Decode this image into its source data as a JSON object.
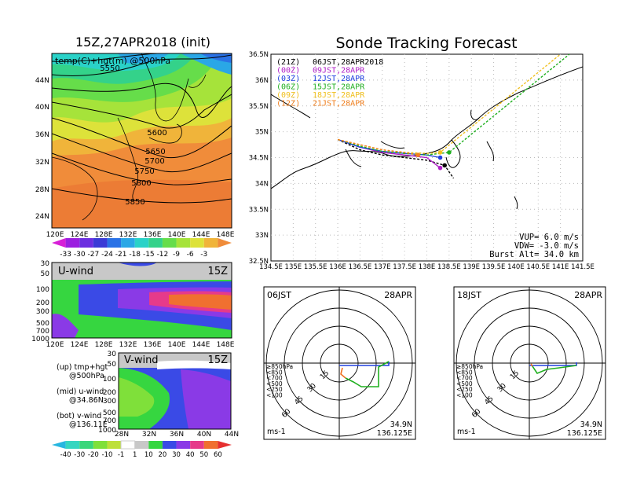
{
  "left": {
    "title": "15Z,27APR2018 (init)",
    "map_label": "temp(C)+hgt(m) @500hPa",
    "lat_labels": [
      "44N",
      "40N",
      "36N",
      "32N",
      "28N",
      "24N"
    ],
    "lon_labels": [
      "120E",
      "124E",
      "128E",
      "132E",
      "136E",
      "140E",
      "144E",
      "148E"
    ],
    "contour_labels": [
      "5550",
      "5600",
      "5650",
      "5700",
      "5750",
      "5800",
      "5850"
    ],
    "temp_scale": [
      "-33",
      "-30",
      "-27",
      "-24",
      "-21",
      "-18",
      "-15",
      "-12",
      "-9",
      "-6",
      "-3"
    ],
    "temp_colors": [
      "#d71fd7",
      "#9b1fe0",
      "#6b2ee0",
      "#3a3ad6",
      "#2a72e6",
      "#2aa7e6",
      "#2ad2c8",
      "#34d28a",
      "#66dd4a",
      "#a6e33a",
      "#dde23a",
      "#f0b43a",
      "#f08c3a"
    ],
    "u_panel": {
      "label": "U-wind",
      "time": "15Z",
      "levels": [
        "30",
        "50",
        "100",
        "200",
        "300",
        "500",
        "700",
        "1000"
      ],
      "lons": [
        "120E",
        "124E",
        "128E",
        "132E",
        "136E",
        "140E",
        "144E",
        "148E"
      ]
    },
    "v_panel": {
      "label": "V-wind",
      "time": "15Z",
      "levels": [
        "30",
        "50",
        "100",
        "200",
        "300",
        "500",
        "700",
        "1000"
      ],
      "lats": [
        "28N",
        "32N",
        "36N",
        "40N",
        "44N"
      ]
    },
    "notes": [
      {
        "line1": "(up) tmp+hgt",
        "line2": "@500hPa"
      },
      {
        "line1": "(mid) u-wind",
        "line2": "@34.86N"
      },
      {
        "line1": "(bot) v-wind",
        "line2": "@136.11E"
      }
    ],
    "wind_scale": [
      "-40",
      "-30",
      "-20",
      "-10",
      "-1",
      "1",
      "10",
      "20",
      "30",
      "40",
      "50",
      "60"
    ],
    "wind_colors": [
      "#27b6e0",
      "#36d6c0",
      "#3ad67a",
      "#7fe03a",
      "#bde03a",
      "#ffffff",
      "#c8c8c8",
      "#36d640",
      "#3a4ae6",
      "#8a3ae6",
      "#e63a8a",
      "#f07030",
      "#e63030"
    ]
  },
  "track": {
    "title": "Sonde Tracking Forecast",
    "lat_labels": [
      "36.5N",
      "36N",
      "35.5N",
      "35N",
      "34.5N",
      "34N",
      "33.5N",
      "33N",
      "32.5N"
    ],
    "lon_labels": [
      "134.5E",
      "135E",
      "135.5E",
      "136E",
      "136.5E",
      "137E",
      "137.5E",
      "138E",
      "138.5E",
      "139E",
      "139.5E",
      "140E",
      "140.5E",
      "141E",
      "141.5E"
    ],
    "legend": [
      {
        "code": "(21Z)",
        "time": "06JST,28APR2018",
        "color": "#000000"
      },
      {
        "code": "(00Z)",
        "time": "09JST,28APR",
        "color": "#b020c8"
      },
      {
        "code": "(03Z)",
        "time": "12JST,28APR",
        "color": "#2040e0"
      },
      {
        "code": "(06Z)",
        "time": "15JST,28APR",
        "color": "#20b020"
      },
      {
        "code": "(09Z)",
        "time": "18JST,28APR",
        "color": "#f0c020"
      },
      {
        "code": "(12Z)",
        "time": "21JST,28APR",
        "color": "#f08020"
      }
    ],
    "vup": "VUP= 6.0 m/s",
    "vdw": "VDW= -3.0 m/s",
    "burst": "Burst Alt= 34.0 km"
  },
  "hodo1": {
    "time": "06JST",
    "date": "28APR",
    "lat": "34.9N",
    "lon": "136.125E",
    "unit": "ms-1",
    "rings": [
      "15",
      "30",
      "45",
      "60"
    ],
    "legend": [
      "≥850hPa",
      "<850",
      "<700",
      "<500",
      "<250",
      "<100"
    ]
  },
  "hodo2": {
    "time": "18JST",
    "date": "28APR",
    "lat": "34.9N",
    "lon": "136.125E",
    "unit": "ms-1",
    "rings": [
      "15",
      "30",
      "45",
      "60"
    ],
    "legend": [
      "≥850hPa",
      "<850",
      "<700",
      "<500",
      "<250",
      "<100"
    ]
  },
  "chart_data": [
    {
      "type": "heatmap",
      "title": "15Z,27APR2018 (init)",
      "annotation": "temp(C)+hgt(m) @500hPa",
      "xlabel": "",
      "ylabel": "",
      "x_ticks": [
        "120E",
        "124E",
        "128E",
        "132E",
        "136E",
        "140E",
        "144E",
        "148E"
      ],
      "y_ticks": [
        "24N",
        "28N",
        "32N",
        "36N",
        "40N",
        "44N"
      ],
      "contours": [
        5550,
        5600,
        5650,
        5700,
        5750,
        5800,
        5850
      ],
      "colorbar": [
        -33,
        -30,
        -27,
        -24,
        -21,
        -18,
        -15,
        -12,
        -9,
        -6,
        -3
      ]
    },
    {
      "type": "heatmap",
      "title": "U-wind",
      "annotation": "15Z",
      "y_ticks": [
        "30",
        "50",
        "100",
        "200",
        "300",
        "500",
        "700",
        "1000"
      ],
      "x_ticks": [
        "120E",
        "124E",
        "128E",
        "132E",
        "136E",
        "140E",
        "144E",
        "148E"
      ]
    },
    {
      "type": "heatmap",
      "title": "V-wind",
      "annotation": "15Z",
      "y_ticks": [
        "30",
        "50",
        "100",
        "200",
        "300",
        "500",
        "700",
        "1000"
      ],
      "x_ticks": [
        "28N",
        "32N",
        "36N",
        "40N",
        "44N"
      ],
      "colorbar": [
        -40,
        -30,
        -20,
        -10,
        -1,
        1,
        10,
        20,
        30,
        40,
        50,
        60
      ]
    },
    {
      "type": "line",
      "title": "Sonde Tracking Forecast",
      "xlim": [
        134.5,
        141.5
      ],
      "ylim": [
        32.5,
        36.5
      ],
      "series": [
        {
          "name": "(21Z) 06JST,28APR2018",
          "x": [
            136.0,
            136.5,
            137.0,
            137.5,
            138.0,
            138.4,
            138.6
          ],
          "y": [
            34.85,
            34.65,
            34.55,
            34.5,
            34.45,
            34.35,
            34.1
          ]
        },
        {
          "name": "(00Z) 09JST,28APR",
          "x": [
            136.0,
            136.5,
            137.0,
            137.5,
            138.0,
            138.3
          ],
          "y": [
            34.85,
            34.7,
            34.6,
            34.55,
            34.5,
            34.3
          ]
        },
        {
          "name": "(03Z) 12JST,28APR",
          "x": [
            136.0,
            136.5,
            137.0,
            137.5,
            138.0,
            138.3
          ],
          "y": [
            34.85,
            34.7,
            34.62,
            34.58,
            34.55,
            34.5
          ]
        },
        {
          "name": "(06Z) 15JST,28APR",
          "x": [
            136.0,
            136.5,
            137.0,
            137.5,
            138.0,
            138.5,
            141.2
          ],
          "y": [
            34.85,
            34.72,
            34.62,
            34.58,
            34.55,
            34.6,
            36.5
          ]
        },
        {
          "name": "(09Z) 18JST,28APR",
          "x": [
            136.0,
            136.5,
            137.0,
            137.5,
            138.0,
            138.3,
            141.0
          ],
          "y": [
            34.85,
            34.75,
            34.65,
            34.6,
            34.58,
            34.6,
            36.5
          ]
        },
        {
          "name": "(12Z) 21JST,28APR",
          "x": [
            136.0,
            136.5,
            137.0,
            137.5,
            137.8
          ],
          "y": [
            34.85,
            34.75,
            34.65,
            34.6,
            34.55
          ]
        }
      ]
    }
  ]
}
